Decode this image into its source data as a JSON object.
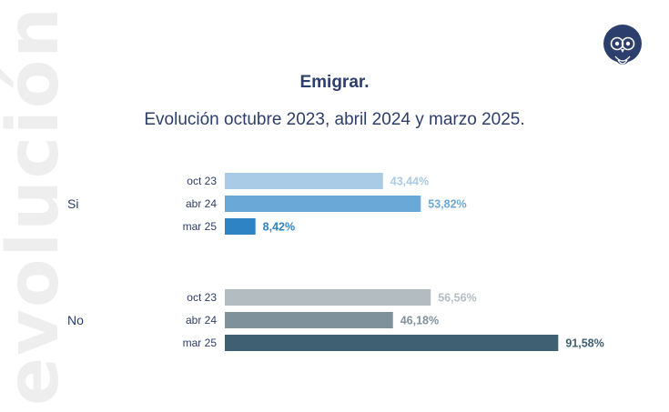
{
  "side_word": "evolución",
  "logo_icon": "owl-logo-icon",
  "chart_data": {
    "type": "bar",
    "orientation": "horizontal",
    "title": "Emigrar.",
    "subtitle": "Evolución octubre 2023, abril 2024 y marzo 2025.",
    "xlim": [
      0,
      100
    ],
    "grid": false,
    "groups": [
      {
        "name": "Si",
        "bars": [
          {
            "label": "oct 23",
            "value": 43.44,
            "display": "43,44%",
            "color": "#a9cbe6"
          },
          {
            "label": "abr 24",
            "value": 53.82,
            "display": "53,82%",
            "color": "#6aa8d8"
          },
          {
            "label": "mar 25",
            "value": 8.42,
            "display": "8,42%",
            "color": "#2e83c5"
          }
        ]
      },
      {
        "name": "No",
        "bars": [
          {
            "label": "oct 23",
            "value": 56.56,
            "display": "56,56%",
            "color": "#b3bcc1"
          },
          {
            "label": "abr 24",
            "value": 46.18,
            "display": "46,18%",
            "color": "#7f929b"
          },
          {
            "label": "mar 25",
            "value": 91.58,
            "display": "91,58%",
            "color": "#3f6072"
          }
        ]
      }
    ]
  }
}
